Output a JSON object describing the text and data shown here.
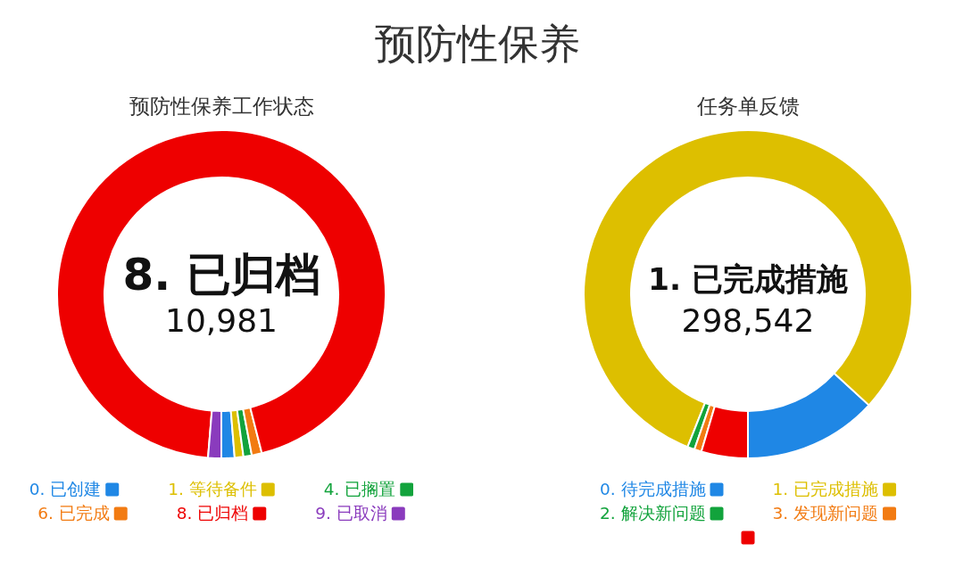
{
  "chart_data": [
    {
      "type": "donut",
      "title": "预防性保养",
      "subtitle": "预防性保养工作状态",
      "categories": [
        "0. 已创建",
        "1. 等待备件",
        "4. 已搁置",
        "6. 已完成",
        "8. 已归档",
        "9. 已取消"
      ],
      "values": [
        150,
        100,
        95,
        115,
        10981,
        150
      ],
      "colors": [
        "#1f87e5",
        "#ddbf00",
        "#12a33c",
        "#f27b12",
        "#ee0000",
        "#8a3bbd"
      ],
      "value_labels": [
        null,
        null,
        null,
        null,
        "10,981",
        null
      ],
      "legend": "bottom"
    },
    {
      "type": "donut",
      "subtitle": "任务单反馈",
      "categories": [
        "0. 待完成措施",
        "1. 已完成措施",
        "2. 解决新问题",
        "3. 发现新问题",
        null
      ],
      "values": [
        48700,
        298542,
        2600,
        2600,
        16900
      ],
      "colors": [
        "#1f87e5",
        "#ddbf00",
        "#12a33c",
        "#f27b12",
        "#ee0000"
      ],
      "value_labels": [
        null,
        "298,542",
        null,
        null,
        null
      ],
      "legend": "bottom"
    }
  ]
}
